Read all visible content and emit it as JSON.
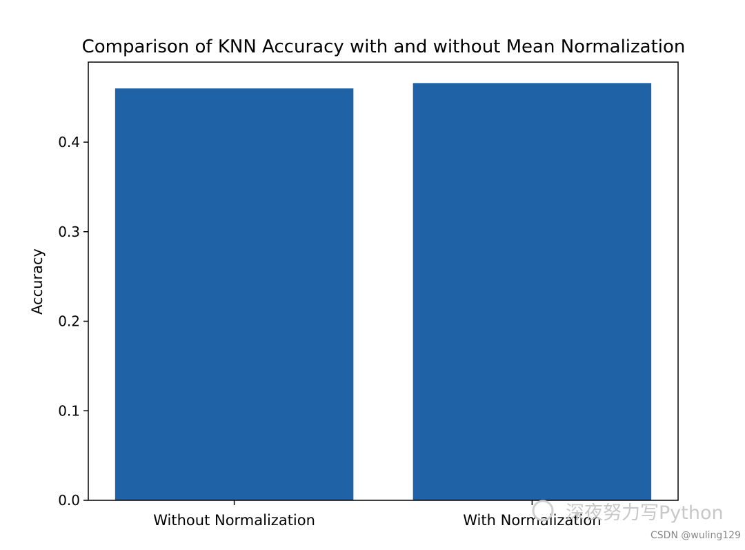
{
  "chart_data": {
    "type": "bar",
    "title": "Comparison of KNN Accuracy with and without Mean Normalization",
    "xlabel": "",
    "ylabel": "Accuracy",
    "categories": [
      "Without Normalization",
      "With Normalization"
    ],
    "values": [
      0.46,
      0.466
    ],
    "ylim": [
      0,
      0.49
    ],
    "yticks": [
      0.0,
      0.1,
      0.2,
      0.3,
      0.4
    ],
    "ytick_labels": [
      "0.0",
      "0.1",
      "0.2",
      "0.3",
      "0.4"
    ],
    "grid": false,
    "bar_color": "#1f62a5"
  },
  "watermark": {
    "text": "深夜努力写Python",
    "credit": "CSDN @wuling129"
  }
}
